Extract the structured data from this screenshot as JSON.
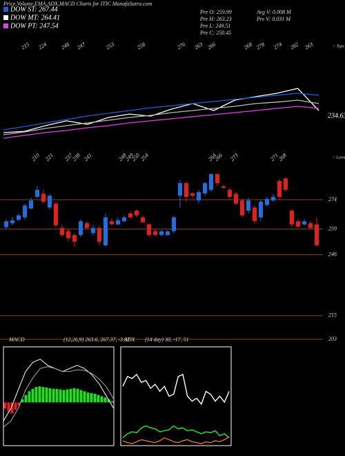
{
  "title": "Price,Volume,EMA,ADX,MACD Charts for ITIC MunafaSutra.com",
  "legend": [
    {
      "label": "DOW ST: 267.44",
      "color": "#1f5fd6"
    },
    {
      "label": "DOW MT: 264.41",
      "color": "#ffffff"
    },
    {
      "label": "DOW PT: 247.54",
      "color": "#e040e0"
    }
  ],
  "info": [
    "Pre O: 259.99",
    "Pre H: 263.23",
    "Pre L: 249.51",
    "Pre C: 250.45",
    "Avg V: 0.008 M",
    "Pre V: 0.031 M"
  ],
  "tops": {
    "label": "< Tops",
    "values": [
      215,
      224,
      248,
      247,
      253,
      258,
      276,
      263,
      266,
      268,
      278,
      274,
      282,
      263
    ]
  },
  "lows": {
    "label": "< Lows",
    "values": [
      210,
      221,
      237,
      238,
      241,
      248,
      249,
      250,
      254,
      264,
      266,
      273,
      271,
      268
    ]
  },
  "chart_data": [
    {
      "type": "line",
      "label": "234.63",
      "ylim": [
        225,
        285
      ],
      "series": [
        {
          "color": "#ffffff",
          "values": [
            230.6,
            231.4,
            234.9,
            237.9,
            235.7,
            240,
            242.1,
            240.8,
            245.2,
            248.6,
            244.3,
            250.7,
            252.9,
            255,
            258,
            244.3
          ]
        },
        {
          "color": "#bbbbbb",
          "values": [
            229.3,
            231,
            233.2,
            234.9,
            236.6,
            238.3,
            240,
            241.3,
            243,
            244.3,
            245.6,
            246.9,
            248.6,
            249.5,
            250.7,
            248.6
          ]
        },
        {
          "color": "#e040e0",
          "values": [
            227.1,
            228.9,
            230.6,
            231.9,
            233.6,
            234.9,
            236.6,
            237.9,
            239.2,
            240.5,
            241.7,
            243,
            244.3,
            245.6,
            246.9,
            245.6
          ]
        },
        {
          "color": "#1f5fd6",
          "values": [
            232.3,
            234.4,
            236.6,
            238.7,
            240.9,
            242.6,
            244.3,
            246,
            247.3,
            248.6,
            249.9,
            251.2,
            252.5,
            253.8,
            255,
            253.8
          ]
        }
      ]
    },
    {
      "type": "candlestick",
      "ylim": [
        201.6,
        287.7
      ],
      "levels": [
        274,
        259,
        246,
        215,
        203
      ],
      "level_color": "#8b4513",
      "up_color": "#1e6fe0",
      "down_color": "#e0201e",
      "open": [
        260,
        262,
        263.8,
        265,
        269.5,
        275.4,
        277,
        270,
        272,
        259.6,
        258,
        256,
        256,
        262,
        257,
        259.6,
        250.8,
        263,
        261.4,
        263,
        267,
        268.4,
        265,
        261.4,
        258,
        256,
        256,
        258,
        276,
        282.4,
        277.2,
        273.6,
        277.2,
        279,
        287,
        280.7,
        279,
        277,
        273.6,
        268.4,
        270,
        265,
        271.3,
        273.6,
        283.5,
        284.8,
        268.4,
        263,
        261.4,
        262,
        261.4
      ],
      "high": [
        264,
        265,
        267,
        272,
        275,
        281,
        279,
        277,
        273,
        261,
        259,
        257,
        264,
        263,
        261,
        261,
        267,
        264.5,
        265,
        266,
        268,
        269,
        266,
        262,
        259,
        258.5,
        258.5,
        266,
        284,
        283,
        278,
        279,
        283,
        287.5,
        287.5,
        281.5,
        280,
        278,
        274.5,
        275,
        271,
        274,
        275.5,
        277,
        284.5,
        285.5,
        269,
        264,
        264,
        263,
        265
      ],
      "low": [
        259,
        261,
        263,
        264,
        269,
        275,
        272,
        269,
        260,
        255,
        253,
        250,
        255,
        259,
        256,
        251,
        250,
        261,
        261,
        262.5,
        264.5,
        265,
        262,
        255,
        255.5,
        255.5,
        255.5,
        257,
        270,
        273,
        275,
        272,
        276,
        278,
        281,
        279.5,
        274,
        271,
        265,
        267,
        262,
        263,
        270.5,
        273,
        274,
        278,
        260,
        259.5,
        261,
        259,
        250
      ],
      "close": [
        263,
        263.5,
        266,
        271,
        273.6,
        279,
        273,
        276,
        261,
        256,
        254.4,
        252.6,
        263,
        259.6,
        259.6,
        252.6,
        265,
        261.5,
        263.5,
        265,
        265,
        266,
        262.5,
        256,
        256,
        257.9,
        257.9,
        265,
        282.4,
        275.4,
        276,
        277.8,
        282.4,
        287,
        282.4,
        280,
        275.4,
        272,
        266,
        273.6,
        263.1,
        273,
        274.4,
        275.4,
        275.4,
        279,
        261.4,
        260.3,
        263,
        259.6,
        250.8
      ]
    },
    {
      "type": "macd",
      "name": "MACD",
      "params": "(12,26,9) 263.6, 267.37, -3.97",
      "ylim": [
        -7,
        9
      ],
      "pos_color": "#22dd22",
      "neg_color": "#e0201e",
      "histogram": [
        -1,
        -1.5,
        -1.8,
        -1.2,
        -0.5,
        0.5,
        1.2,
        1.8,
        2.2,
        2.5,
        2.6,
        2.5,
        2.4,
        2.3,
        2.2,
        2.2,
        2.1,
        2,
        2.1,
        2.2,
        2.3,
        2.2,
        2,
        1.8,
        1.6,
        1.5,
        1.4,
        1.2,
        1,
        0.8,
        0.5,
        0.2
      ],
      "series": [
        {
          "color": "#ffffff",
          "values": [
            -3,
            -1,
            2,
            5,
            6.5,
            7,
            6,
            5.5,
            5,
            5.5,
            6,
            5.5,
            4.5,
            3,
            1,
            -1
          ]
        },
        {
          "color": "#aaaaaa",
          "values": [
            -4,
            -3,
            -1,
            2,
            4,
            5.5,
            5.8,
            5.5,
            5,
            5,
            5.3,
            5.2,
            4.7,
            3.8,
            2.5,
            0.5
          ]
        }
      ]
    },
    {
      "type": "adx",
      "name": "ADX",
      "params": "(14 day) 30, -17, 51",
      "ylim": [
        0,
        100
      ],
      "series": [
        {
          "color": "#ffffff",
          "values": [
            60,
            70,
            68,
            72,
            64,
            66,
            58,
            62,
            55,
            60,
            50,
            52,
            70,
            72,
            50,
            45,
            48,
            42,
            55,
            52,
            45,
            50,
            44,
            55
          ]
        },
        {
          "color": "#22ee22",
          "values": [
            8,
            12,
            14,
            13,
            18,
            20,
            18,
            17,
            14,
            15,
            16,
            20,
            17,
            18,
            15,
            16,
            14,
            12,
            14,
            13,
            15,
            10,
            12,
            8
          ]
        },
        {
          "color": "#e07020",
          "values": [
            5,
            3,
            2,
            4,
            6,
            5,
            4,
            3,
            5,
            8,
            6,
            4,
            3,
            5,
            6,
            4,
            3,
            2,
            4,
            3,
            5,
            4,
            6,
            9
          ]
        }
      ]
    }
  ]
}
